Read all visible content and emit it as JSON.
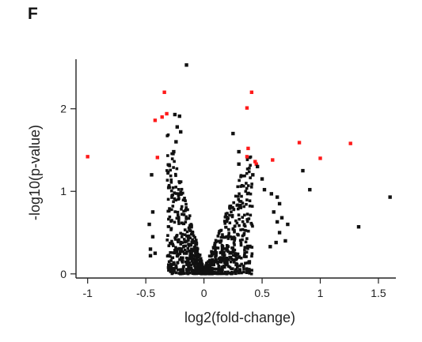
{
  "panel_label": "F",
  "chart_data": {
    "type": "scatter",
    "title": "",
    "xlabel": "log2(fold-change)",
    "ylabel": "-log10(p-value)",
    "xlim": [
      -1.1,
      1.65
    ],
    "ylim": [
      -0.05,
      2.6
    ],
    "xticks": [
      -1,
      -0.5,
      0,
      0.5,
      1,
      1.5
    ],
    "xtick_labels": [
      "-1",
      "-0.5",
      "0",
      "0.5",
      "1",
      "1.5"
    ],
    "yticks": [
      0,
      1,
      2
    ],
    "ytick_labels": [
      "0",
      "1",
      "2"
    ],
    "colors": {
      "significant": "#ff1a1a",
      "other": "#111111"
    },
    "series": [
      {
        "color": "#ff1a1a",
        "points": [
          [
            -1.0,
            1.42
          ],
          [
            -0.42,
            1.86
          ],
          [
            -0.36,
            1.9
          ],
          [
            -0.34,
            2.2
          ],
          [
            -0.32,
            1.94
          ],
          [
            -0.4,
            1.41
          ],
          [
            0.41,
            2.2
          ],
          [
            0.37,
            2.01
          ],
          [
            0.37,
            1.42
          ],
          [
            0.38,
            1.52
          ],
          [
            0.44,
            1.36
          ],
          [
            0.45,
            1.33
          ],
          [
            0.59,
            1.38
          ],
          [
            0.82,
            1.59
          ],
          [
            1.0,
            1.4
          ],
          [
            1.26,
            1.58
          ]
        ]
      },
      {
        "color": "#111111",
        "points": [
          [
            -0.15,
            2.53
          ],
          [
            -0.25,
            1.93
          ],
          [
            -0.21,
            1.91
          ],
          [
            -0.23,
            1.78
          ],
          [
            -0.24,
            1.6
          ],
          [
            -0.2,
            1.72
          ],
          [
            -0.26,
            1.48
          ],
          [
            -0.3,
            1.32
          ],
          [
            -0.45,
            1.2
          ],
          [
            -0.44,
            0.75
          ],
          [
            -0.47,
            0.6
          ],
          [
            -0.44,
            0.45
          ],
          [
            -0.46,
            0.3
          ],
          [
            -0.46,
            0.22
          ],
          [
            -0.42,
            0.25
          ],
          [
            0.25,
            1.7
          ],
          [
            0.3,
            1.48
          ],
          [
            0.3,
            1.33
          ],
          [
            0.46,
            1.3
          ],
          [
            0.42,
            1.2
          ],
          [
            0.52,
            1.02
          ],
          [
            0.58,
            0.97
          ],
          [
            0.63,
            0.93
          ],
          [
            0.65,
            0.85
          ],
          [
            0.6,
            0.75
          ],
          [
            0.67,
            0.68
          ],
          [
            0.63,
            0.63
          ],
          [
            0.72,
            0.6
          ],
          [
            0.65,
            0.5
          ],
          [
            0.62,
            0.38
          ],
          [
            0.57,
            0.33
          ],
          [
            0.7,
            0.4
          ],
          [
            0.91,
            1.02
          ],
          [
            1.6,
            0.93
          ],
          [
            1.33,
            0.57
          ],
          [
            0.85,
            1.25
          ],
          [
            0.5,
            1.15
          ]
        ]
      }
    ]
  }
}
